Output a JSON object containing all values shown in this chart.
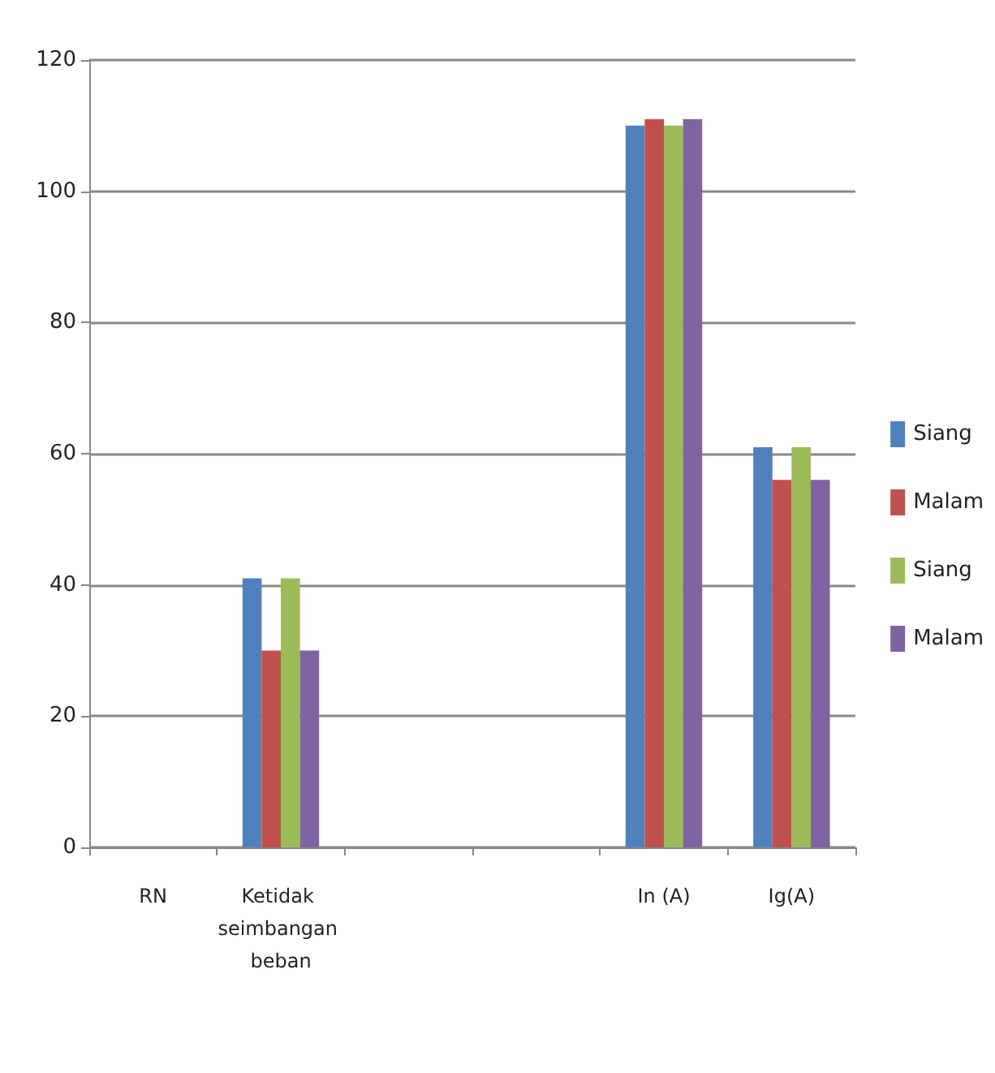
{
  "chart_data": {
    "type": "bar",
    "categories": [
      "RN",
      "Ketidak seimbangan beban",
      null,
      null,
      "In (A)",
      "Ig(A)"
    ],
    "series": [
      {
        "name": "Siang",
        "color": "#4f81bd",
        "values": [
          null,
          41,
          null,
          null,
          110,
          61
        ]
      },
      {
        "name": "Malam",
        "color": "#c0504d",
        "values": [
          null,
          30,
          null,
          null,
          111,
          56
        ]
      },
      {
        "name": "Siang",
        "color": "#9bbb59",
        "values": [
          null,
          41,
          null,
          null,
          110,
          61
        ]
      },
      {
        "name": "Malam",
        "color": "#8064a2",
        "values": [
          null,
          30,
          null,
          null,
          111,
          56
        ]
      }
    ],
    "ylim": [
      0,
      120
    ],
    "yticks": [
      0,
      20,
      40,
      60,
      80,
      100,
      120
    ],
    "grid": "y",
    "legend": "right"
  }
}
